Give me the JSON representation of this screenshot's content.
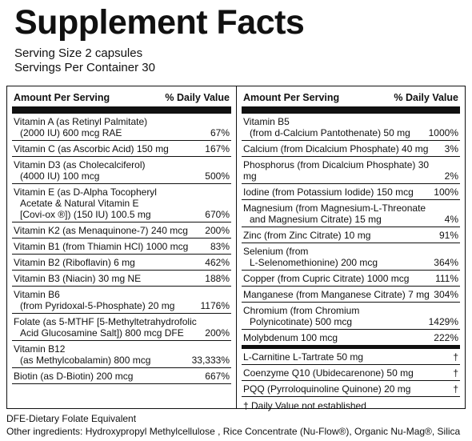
{
  "title": "Supplement Facts",
  "serving_size": "Serving Size 2 capsules",
  "servings_per_container": "Servings Per Container 30",
  "columns": [
    {
      "header": {
        "amount": "Amount Per Serving",
        "dv": "% Daily Value"
      },
      "rows": [
        {
          "lines": [
            "Vitamin A (as Retinyl Palmitate)",
            "(2000 IU) 600 mcg RAE"
          ],
          "dv": "67%"
        },
        {
          "lines": [
            "Vitamin C (as Ascorbic Acid) 150 mg"
          ],
          "dv": "167%"
        },
        {
          "lines": [
            "Vitamin D3 (as Cholecalciferol)",
            "(4000 IU) 100 mcg"
          ],
          "dv": "500%"
        },
        {
          "lines": [
            "Vitamin E (as D-Alpha Tocopheryl",
            "Acetate & Natural Vitamin E",
            "[Covi-ox ®]) (150 IU) 100.5 mg"
          ],
          "dv": "670%"
        },
        {
          "lines": [
            "Vitamin K2 (as Menaquinone-7) 240 mcg"
          ],
          "dv": "200%"
        },
        {
          "lines": [
            "Vitamin B1 (from Thiamin HCl) 1000 mcg"
          ],
          "dv": "83%"
        },
        {
          "lines": [
            "Vitamin B2 (Riboflavin) 6 mg"
          ],
          "dv": "462%"
        },
        {
          "lines": [
            "Vitamin B3 (Niacin) 30 mg NE"
          ],
          "dv": "188%"
        },
        {
          "lines": [
            "Vitamin B6",
            "(from Pyridoxal-5-Phosphate) 20 mg"
          ],
          "dv": "1176%"
        },
        {
          "lines": [
            "Folate (as 5-MTHF [5-Methyltetrahydrofolic",
            "Acid Glucosamine Salt]) 800 mcg  DFE"
          ],
          "dv": "200%"
        },
        {
          "lines": [
            "Vitamin B12",
            "(as Methylcobalamin) 800 mcg"
          ],
          "dv": "33,333%"
        },
        {
          "lines": [
            "Biotin (as D-Biotin) 200 mcg"
          ],
          "dv": "667%"
        }
      ]
    },
    {
      "header": {
        "amount": "Amount Per Serving",
        "dv": "% Daily Value"
      },
      "rows": [
        {
          "lines": [
            "Vitamin B5",
            "(from d-Calcium Pantothenate) 50 mg"
          ],
          "dv": "1000%"
        },
        {
          "lines": [
            "Calcium (from Dicalcium Phosphate)  40 mg"
          ],
          "dv": "3%"
        },
        {
          "lines": [
            "Phosphorus (from Dicalcium Phosphate) 30 mg"
          ],
          "dv": "2%"
        },
        {
          "lines": [
            "Iodine (from Potassium Iodide) 150 mcg"
          ],
          "dv": "100%"
        },
        {
          "lines": [
            "Magnesium (from Magnesium-L-Threonate",
            "and Magnesium Citrate) 15 mg"
          ],
          "dv": "4%"
        },
        {
          "lines": [
            "Zinc (from Zinc Citrate) 10 mg"
          ],
          "dv": "91%"
        },
        {
          "lines": [
            "Selenium (from",
            "L-Selenomethionine) 200 mcg"
          ],
          "dv": "364%"
        },
        {
          "lines": [
            "Copper (from Cupric Citrate) 1000 mcg"
          ],
          "dv": "111%"
        },
        {
          "lines": [
            "Manganese (from Manganese Citrate) 7 mg"
          ],
          "dv": "304%"
        },
        {
          "lines": [
            "Chromium (from Chromium",
            "Polynicotinate) 500 mcg"
          ],
          "dv": "1429%"
        },
        {
          "lines": [
            "Molybdenum 100 mcg"
          ],
          "dv": "222%"
        }
      ],
      "other_rows": [
        {
          "lines": [
            "L-Carnitine L-Tartrate 50 mg"
          ],
          "dv": "†"
        },
        {
          "lines": [
            "Coenzyme Q10 (Ubidecarenone) 50 mg"
          ],
          "dv": "†"
        },
        {
          "lines": [
            "PQQ (Pyrroloquinoline Quinone) 20 mg"
          ],
          "dv": "†"
        }
      ],
      "footnote": "† Daily Value not established"
    }
  ],
  "footer": [
    "DFE-Dietary Folate Equivalent",
    "Other ingredients: Hydroxypropyl Methylcellulose , Rice Concentrate (Nu-Flow®), Organic Nu-Mag®, Silica"
  ]
}
